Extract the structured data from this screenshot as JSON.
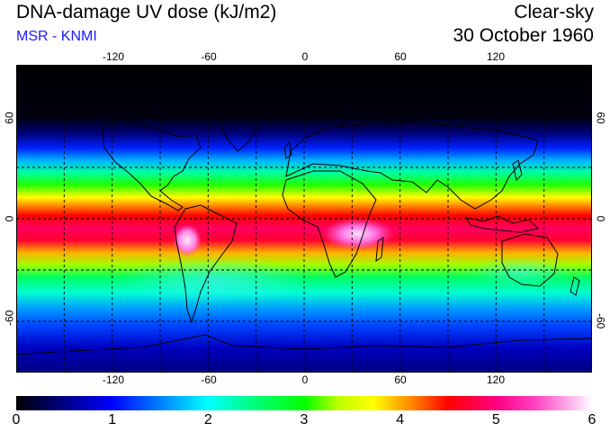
{
  "header": {
    "title": "DNA-damage UV dose (kJ/m2)",
    "subtitle": "MSR - KNMI",
    "sky_type": "Clear-sky",
    "date": "30 October 1960"
  },
  "map": {
    "lon_ticks_top": [
      "-120",
      "-60",
      "0",
      "60",
      "120"
    ],
    "lon_ticks_bottom": [
      "-120",
      "-60",
      "0",
      "60",
      "120"
    ],
    "lat_ticks_left": [
      "60",
      "0",
      "-60"
    ],
    "lat_ticks_right": [
      "60",
      "0",
      "-60"
    ],
    "lon_range": [
      -180,
      180
    ],
    "lat_range": [
      -90,
      90
    ],
    "grid_lons": [
      -150,
      -120,
      -90,
      -60,
      -30,
      0,
      30,
      60,
      90,
      120,
      150
    ],
    "grid_lats": [
      -60,
      -30,
      0,
      30,
      60
    ]
  },
  "colorbar": {
    "labels": [
      "0",
      "1",
      "2",
      "3",
      "4",
      "5",
      "6"
    ],
    "min": 0,
    "max": 6
  },
  "colors": {
    "subtitle": "#1a1aff",
    "land_outline": "#000000",
    "grid": "#000000"
  }
}
